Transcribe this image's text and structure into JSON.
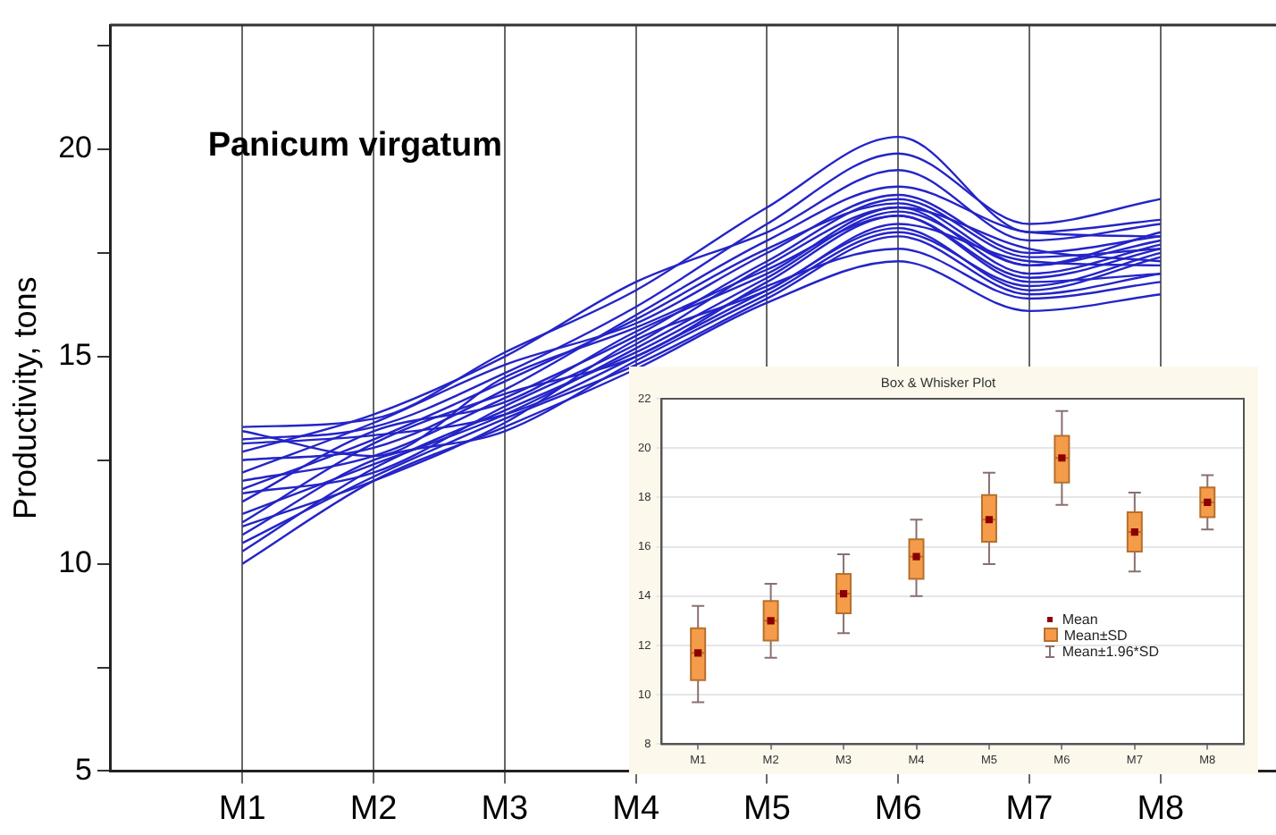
{
  "chart_data": [
    {
      "type": "line",
      "title": "Panicum virgatum",
      "ylabel": "Productivity, tons",
      "categories": [
        "M1",
        "M2",
        "M3",
        "M4",
        "M5",
        "M6",
        "M7",
        "M8"
      ],
      "ylim": [
        5,
        23
      ],
      "yticks": [
        5,
        {
          "value": 7.5,
          "label": null
        },
        10,
        {
          "value": 12.5,
          "label": null
        },
        15,
        {
          "value": 17.5,
          "label": null
        },
        20,
        {
          "value": 22.5,
          "label": null
        }
      ],
      "grid": "x",
      "marker": "none",
      "line_style": "solid",
      "series": [
        {
          "color": "#2424c8",
          "values": [
            13.3,
            13.5,
            15.1,
            16.6,
            18.6,
            20.3,
            18.0,
            18.3
          ]
        },
        {
          "color": "#2424c8",
          "values": [
            13.0,
            13.3,
            14.6,
            16.2,
            18.2,
            19.9,
            18.2,
            18.8
          ]
        },
        {
          "color": "#2424c8",
          "values": [
            12.7,
            13.6,
            15.0,
            16.8,
            18.0,
            19.5,
            17.8,
            18.2
          ]
        },
        {
          "color": "#2424c8",
          "values": [
            12.5,
            12.8,
            14.2,
            16.0,
            17.8,
            19.1,
            18.0,
            17.9
          ]
        },
        {
          "color": "#2424c8",
          "values": [
            12.2,
            13.4,
            14.8,
            15.8,
            17.5,
            18.9,
            17.5,
            17.9
          ]
        },
        {
          "color": "#2424c8",
          "values": [
            12.0,
            12.6,
            14.0,
            15.5,
            17.3,
            18.8,
            17.4,
            17.6
          ]
        },
        {
          "color": "#2424c8",
          "values": [
            11.8,
            13.0,
            14.4,
            15.9,
            17.6,
            18.7,
            17.2,
            17.8
          ]
        },
        {
          "color": "#2424c8",
          "values": [
            11.7,
            12.2,
            13.8,
            15.3,
            17.2,
            18.6,
            17.6,
            17.3
          ]
        },
        {
          "color": "#2424c8",
          "values": [
            11.5,
            13.2,
            13.9,
            15.6,
            17.0,
            18.6,
            17.0,
            17.7
          ]
        },
        {
          "color": "#2424c8",
          "values": [
            11.2,
            12.4,
            13.6,
            15.2,
            16.9,
            18.5,
            17.2,
            18.0
          ]
        },
        {
          "color": "#2424c8",
          "values": [
            11.0,
            12.9,
            14.1,
            15.0,
            16.8,
            18.4,
            16.9,
            17.6
          ]
        },
        {
          "color": "#2424c8",
          "values": [
            10.9,
            12.0,
            13.4,
            15.4,
            16.6,
            18.2,
            17.3,
            17.2
          ]
        },
        {
          "color": "#2424c8",
          "values": [
            10.7,
            12.5,
            13.2,
            14.9,
            16.5,
            18.0,
            16.7,
            17.5
          ]
        },
        {
          "color": "#2424c8",
          "values": [
            10.5,
            12.1,
            13.5,
            14.8,
            16.4,
            17.9,
            16.5,
            17.0
          ]
        },
        {
          "color": "#2424c8",
          "values": [
            10.3,
            12.3,
            13.7,
            15.1,
            16.7,
            17.6,
            16.4,
            16.8
          ]
        },
        {
          "color": "#2424c8",
          "values": [
            10.0,
            12.0,
            13.3,
            14.7,
            16.3,
            17.3,
            16.1,
            16.5
          ]
        },
        {
          "color": "#2424c8",
          "values": [
            13.2,
            12.6,
            14.5,
            15.7,
            17.1,
            18.4,
            16.8,
            17.0
          ]
        },
        {
          "color": "#2424c8",
          "values": [
            12.9,
            13.1,
            13.6,
            15.0,
            16.6,
            18.1,
            16.6,
            17.4
          ]
        }
      ]
    },
    {
      "type": "box",
      "title": "Box & Whisker Plot",
      "categories": [
        "M1",
        "M2",
        "M3",
        "M4",
        "M5",
        "M6",
        "M7",
        "M8"
      ],
      "ylim": [
        8,
        22
      ],
      "yticks": [
        8,
        10,
        12,
        14,
        16,
        18,
        20,
        22
      ],
      "grid": "y",
      "color": "#f59c4a",
      "annotations": [
        "Mean",
        "Mean±SD",
        "Mean±1.96*SD"
      ],
      "boxes": [
        {
          "low": 9.7,
          "q1": 10.6,
          "median": 11.7,
          "q3": 12.7,
          "high": 13.6,
          "mean": 11.7
        },
        {
          "low": 11.5,
          "q1": 12.2,
          "median": 13.0,
          "q3": 13.8,
          "high": 14.5,
          "mean": 13.0
        },
        {
          "low": 12.5,
          "q1": 13.3,
          "median": 14.1,
          "q3": 14.9,
          "high": 15.7,
          "mean": 14.1
        },
        {
          "low": 14.0,
          "q1": 14.7,
          "median": 15.6,
          "q3": 16.3,
          "high": 17.1,
          "mean": 15.6
        },
        {
          "low": 15.3,
          "q1": 16.2,
          "median": 17.1,
          "q3": 18.1,
          "high": 19.0,
          "mean": 17.1
        },
        {
          "low": 17.7,
          "q1": 18.6,
          "median": 19.6,
          "q3": 20.5,
          "high": 21.5,
          "mean": 19.6
        },
        {
          "low": 15.0,
          "q1": 15.8,
          "median": 16.6,
          "q3": 17.4,
          "high": 18.2,
          "mean": 16.6
        },
        {
          "low": 16.7,
          "q1": 17.2,
          "median": 17.8,
          "q3": 18.4,
          "high": 18.9,
          "mean": 17.8
        }
      ]
    }
  ]
}
